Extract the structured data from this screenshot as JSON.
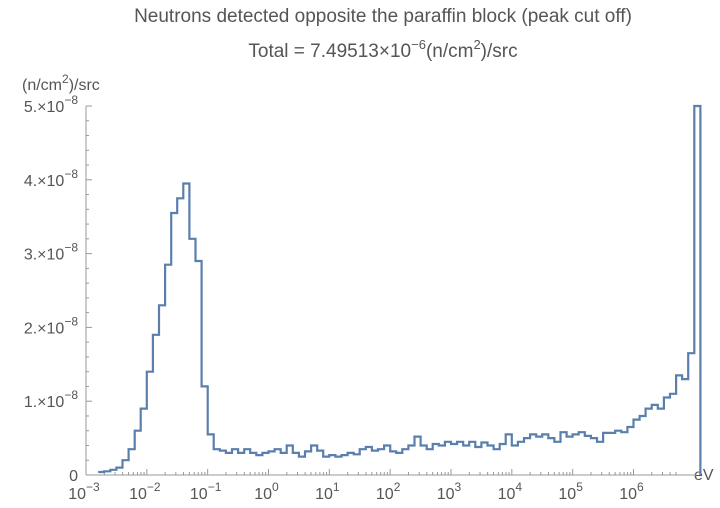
{
  "chart_data": {
    "type": "line",
    "title": "Neutrons detected opposite the paraffin block (peak cut off)",
    "subtitle": {
      "prefix": "Total = 7.49513",
      "times": "×",
      "base": "10",
      "exponent": "−6",
      "unit_open": "(n/cm",
      "unit_exp": "2",
      "unit_close": ")/src"
    },
    "xlabel": "eV",
    "ylabel": {
      "open": "(n/cm",
      "exp": "2",
      "close": ")/src"
    },
    "x_scale": "log",
    "xlim": [
      0.001,
      5000000
    ],
    "ylim": [
      0,
      5e-08
    ],
    "grid": false,
    "x_ticks": [
      {
        "value": 0.001,
        "base": "10",
        "exp": "−3"
      },
      {
        "value": 0.01,
        "base": "10",
        "exp": "−2"
      },
      {
        "value": 0.1,
        "base": "10",
        "exp": "−1"
      },
      {
        "value": 1,
        "base": "10",
        "exp": "0"
      },
      {
        "value": 10,
        "base": "10",
        "exp": "1"
      },
      {
        "value": 100,
        "base": "10",
        "exp": "2"
      },
      {
        "value": 1000,
        "base": "10",
        "exp": "3"
      },
      {
        "value": 10000,
        "base": "10",
        "exp": "4"
      },
      {
        "value": 100000,
        "base": "10",
        "exp": "5"
      },
      {
        "value": 1000000,
        "base": "10",
        "exp": "6"
      }
    ],
    "y_ticks": [
      {
        "value": 0,
        "mant": "0",
        "exp": ""
      },
      {
        "value": 1e-08,
        "mant": "1.×10",
        "exp": "−8"
      },
      {
        "value": 2e-08,
        "mant": "2.×10",
        "exp": "−8"
      },
      {
        "value": 3e-08,
        "mant": "3.×10",
        "exp": "−8"
      },
      {
        "value": 4e-08,
        "mant": "4.×10",
        "exp": "−8"
      },
      {
        "value": 5e-08,
        "mant": "5.×10",
        "exp": "−8"
      }
    ],
    "series": [
      {
        "color": "#5b7fad",
        "log10_x_bins": [
          [
            -2.8,
            0.04
          ],
          [
            -2.7,
            0.05
          ],
          [
            -2.6,
            0.07
          ],
          [
            -2.5,
            0.1
          ],
          [
            -2.4,
            0.2
          ],
          [
            -2.3,
            0.35
          ],
          [
            -2.2,
            0.6
          ],
          [
            -2.1,
            0.9
          ],
          [
            -2.0,
            1.4
          ],
          [
            -1.9,
            1.9
          ],
          [
            -1.8,
            2.3
          ],
          [
            -1.7,
            2.85
          ],
          [
            -1.6,
            3.55
          ],
          [
            -1.5,
            3.75
          ],
          [
            -1.4,
            3.95
          ],
          [
            -1.3,
            3.2
          ],
          [
            -1.2,
            2.9
          ],
          [
            -1.1,
            1.2
          ],
          [
            -1.0,
            0.55
          ],
          [
            -0.9,
            0.35
          ],
          [
            -0.8,
            0.33
          ],
          [
            -0.7,
            0.3
          ],
          [
            -0.6,
            0.35
          ],
          [
            -0.5,
            0.3
          ],
          [
            -0.4,
            0.35
          ],
          [
            -0.3,
            0.3
          ],
          [
            -0.2,
            0.27
          ],
          [
            -0.1,
            0.3
          ],
          [
            0.0,
            0.32
          ],
          [
            0.1,
            0.35
          ],
          [
            0.2,
            0.3
          ],
          [
            0.3,
            0.4
          ],
          [
            0.4,
            0.3
          ],
          [
            0.5,
            0.25
          ],
          [
            0.6,
            0.32
          ],
          [
            0.7,
            0.4
          ],
          [
            0.8,
            0.33
          ],
          [
            0.9,
            0.25
          ],
          [
            1.0,
            0.27
          ],
          [
            1.1,
            0.25
          ],
          [
            1.2,
            0.27
          ],
          [
            1.3,
            0.3
          ],
          [
            1.4,
            0.28
          ],
          [
            1.5,
            0.35
          ],
          [
            1.6,
            0.38
          ],
          [
            1.7,
            0.33
          ],
          [
            1.8,
            0.35
          ],
          [
            1.9,
            0.4
          ],
          [
            2.0,
            0.32
          ],
          [
            2.1,
            0.3
          ],
          [
            2.2,
            0.35
          ],
          [
            2.3,
            0.4
          ],
          [
            2.4,
            0.52
          ],
          [
            2.5,
            0.4
          ],
          [
            2.6,
            0.35
          ],
          [
            2.7,
            0.42
          ],
          [
            2.8,
            0.4
          ],
          [
            2.9,
            0.45
          ],
          [
            3.0,
            0.42
          ],
          [
            3.1,
            0.45
          ],
          [
            3.2,
            0.4
          ],
          [
            3.3,
            0.45
          ],
          [
            3.4,
            0.38
          ],
          [
            3.5,
            0.44
          ],
          [
            3.6,
            0.4
          ],
          [
            3.7,
            0.35
          ],
          [
            3.8,
            0.42
          ],
          [
            3.9,
            0.55
          ],
          [
            4.0,
            0.4
          ],
          [
            4.1,
            0.45
          ],
          [
            4.2,
            0.5
          ],
          [
            4.3,
            0.55
          ],
          [
            4.4,
            0.52
          ],
          [
            4.5,
            0.55
          ],
          [
            4.6,
            0.5
          ],
          [
            4.7,
            0.45
          ],
          [
            4.8,
            0.58
          ],
          [
            4.9,
            0.52
          ],
          [
            5.0,
            0.55
          ],
          [
            5.1,
            0.58
          ],
          [
            5.2,
            0.53
          ],
          [
            5.3,
            0.5
          ],
          [
            5.4,
            0.45
          ],
          [
            5.5,
            0.57
          ],
          [
            5.6,
            0.57
          ],
          [
            5.7,
            0.6
          ],
          [
            5.8,
            0.58
          ],
          [
            5.9,
            0.65
          ],
          [
            6.0,
            0.75
          ],
          [
            6.1,
            0.8
          ],
          [
            6.2,
            0.9
          ],
          [
            6.3,
            0.95
          ],
          [
            6.4,
            0.9
          ],
          [
            6.5,
            1.05
          ],
          [
            6.6,
            1.1
          ],
          [
            6.7,
            1.35
          ],
          [
            6.8,
            1.3
          ],
          [
            6.9,
            1.65
          ],
          [
            7.0,
            5.0
          ]
        ],
        "y_multiplier": 1e-08
      }
    ]
  }
}
